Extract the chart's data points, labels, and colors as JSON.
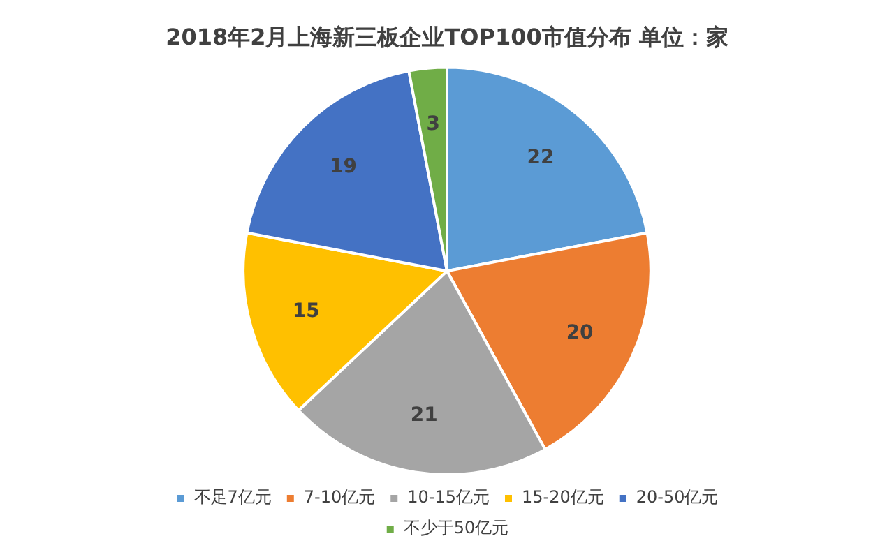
{
  "chart_data": {
    "type": "pie",
    "title": "2018年2月上海新三板企业TOP100市值分布 单位：家",
    "categories": [
      "不足7亿元",
      "7-10亿元",
      "10-15亿元",
      "15-20亿元",
      "20-50亿元",
      "不少于50亿元"
    ],
    "values": [
      22,
      20,
      21,
      15,
      19,
      3
    ],
    "colors": [
      "#5b9bd5",
      "#ed7d31",
      "#a5a5a5",
      "#ffc000",
      "#4472c4",
      "#70ad47"
    ],
    "data_labels": true,
    "legend": "bottom"
  }
}
